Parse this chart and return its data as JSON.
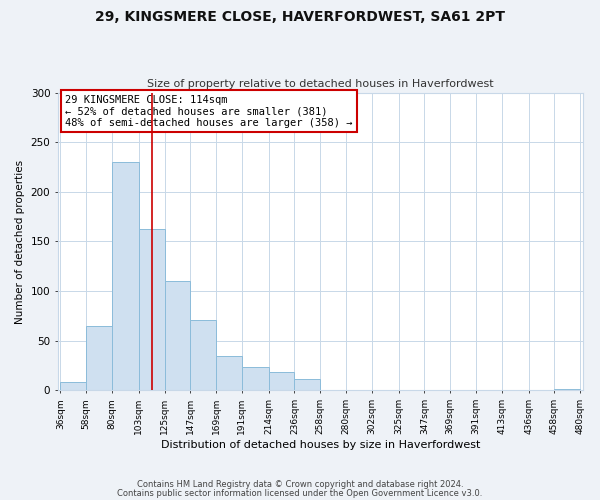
{
  "title": "29, KINGSMERE CLOSE, HAVERFORDWEST, SA61 2PT",
  "subtitle": "Size of property relative to detached houses in Haverfordwest",
  "xlabel": "Distribution of detached houses by size in Haverfordwest",
  "ylabel": "Number of detached properties",
  "bar_edges": [
    36,
    58,
    80,
    103,
    125,
    147,
    169,
    191,
    214,
    236,
    258,
    280,
    302,
    325,
    347,
    369,
    391,
    413,
    436,
    458,
    480
  ],
  "bar_heights": [
    8,
    65,
    230,
    163,
    110,
    71,
    35,
    24,
    19,
    12,
    0,
    0,
    0,
    0,
    0,
    0,
    0,
    0,
    0,
    1
  ],
  "bar_color": "#cfe0f0",
  "bar_edge_color": "#8bbcda",
  "marker_x": 114,
  "marker_color": "#cc0000",
  "ylim": [
    0,
    300
  ],
  "xlim": [
    36,
    480
  ],
  "annotation_text": "29 KINGSMERE CLOSE: 114sqm\n← 52% of detached houses are smaller (381)\n48% of semi-detached houses are larger (358) →",
  "annotation_box_edge": "#cc0000",
  "footer_line1": "Contains HM Land Registry data © Crown copyright and database right 2024.",
  "footer_line2": "Contains public sector information licensed under the Open Government Licence v3.0.",
  "tick_labels": [
    "36sqm",
    "58sqm",
    "80sqm",
    "103sqm",
    "125sqm",
    "147sqm",
    "169sqm",
    "191sqm",
    "214sqm",
    "236sqm",
    "258sqm",
    "280sqm",
    "302sqm",
    "325sqm",
    "347sqm",
    "369sqm",
    "391sqm",
    "413sqm",
    "436sqm",
    "458sqm",
    "480sqm"
  ],
  "background_color": "#eef2f7",
  "plot_background": "#ffffff",
  "grid_color": "#c8d8e8",
  "title_fontsize": 10,
  "subtitle_fontsize": 8,
  "xlabel_fontsize": 8,
  "ylabel_fontsize": 7.5,
  "tick_fontsize": 6.5,
  "footer_fontsize": 6
}
